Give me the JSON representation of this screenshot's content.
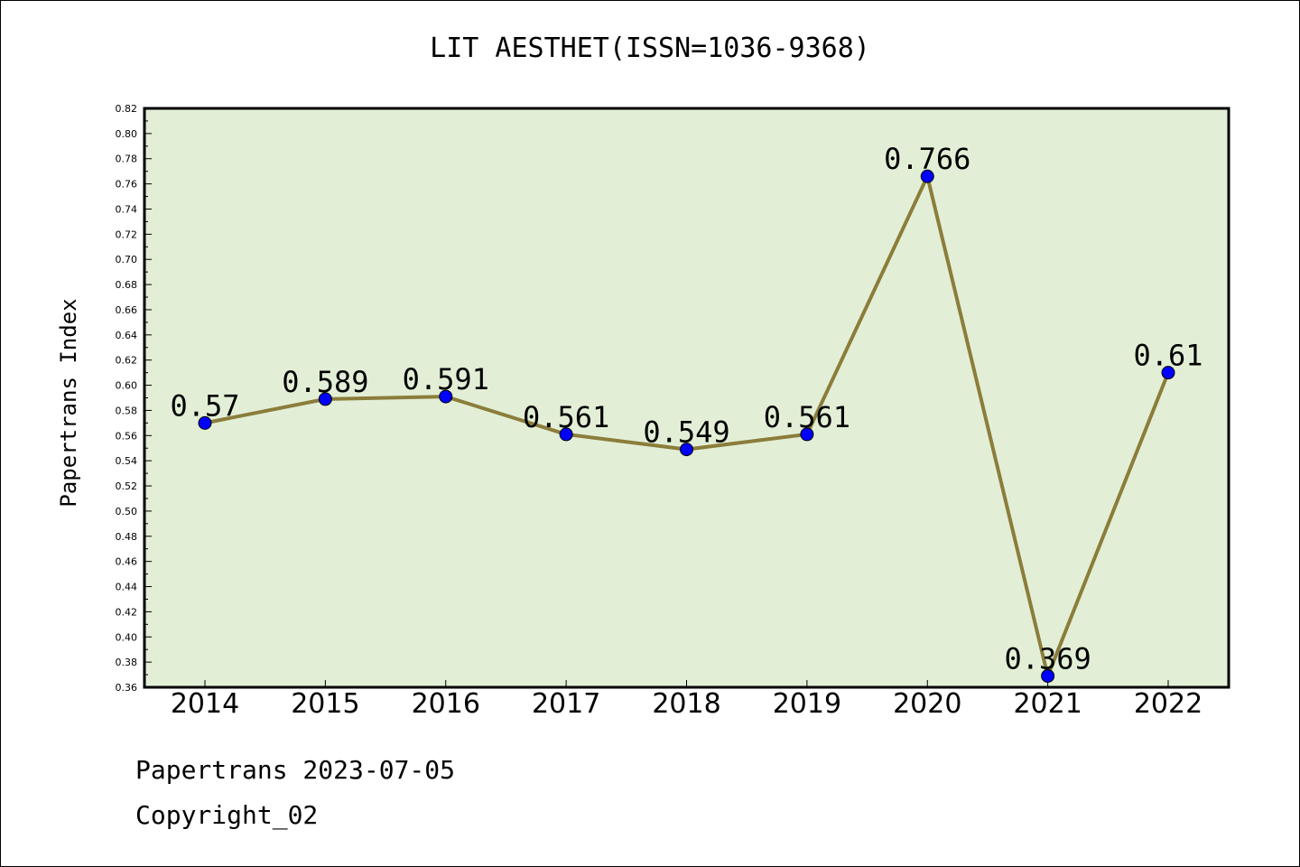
{
  "chart_data": {
    "type": "line",
    "title": "LIT AESTHET(ISSN=1036-9368)",
    "xlabel": "",
    "ylabel": "Papertrans Index",
    "categories": [
      "2014",
      "2015",
      "2016",
      "2017",
      "2018",
      "2019",
      "2020",
      "2021",
      "2022"
    ],
    "series": [
      {
        "values": [
          0.57,
          0.589,
          0.591,
          0.561,
          0.549,
          0.561,
          0.766,
          0.369,
          0.61
        ],
        "labels": [
          "0.57",
          "0.589",
          "0.591",
          "0.561",
          "0.549",
          "0.561",
          "0.766",
          "0.369",
          "0.61"
        ]
      }
    ],
    "ylim": [
      0.36,
      0.82
    ],
    "ytick_step": 0.02,
    "grid": false,
    "colors": {
      "plot_background": "#e2efd6",
      "line": "#8b7d3a",
      "marker": "#0000ff"
    }
  },
  "footer": {
    "date_text": "Papertrans 2023-07-05",
    "copyright_text": "Copyright_02"
  }
}
